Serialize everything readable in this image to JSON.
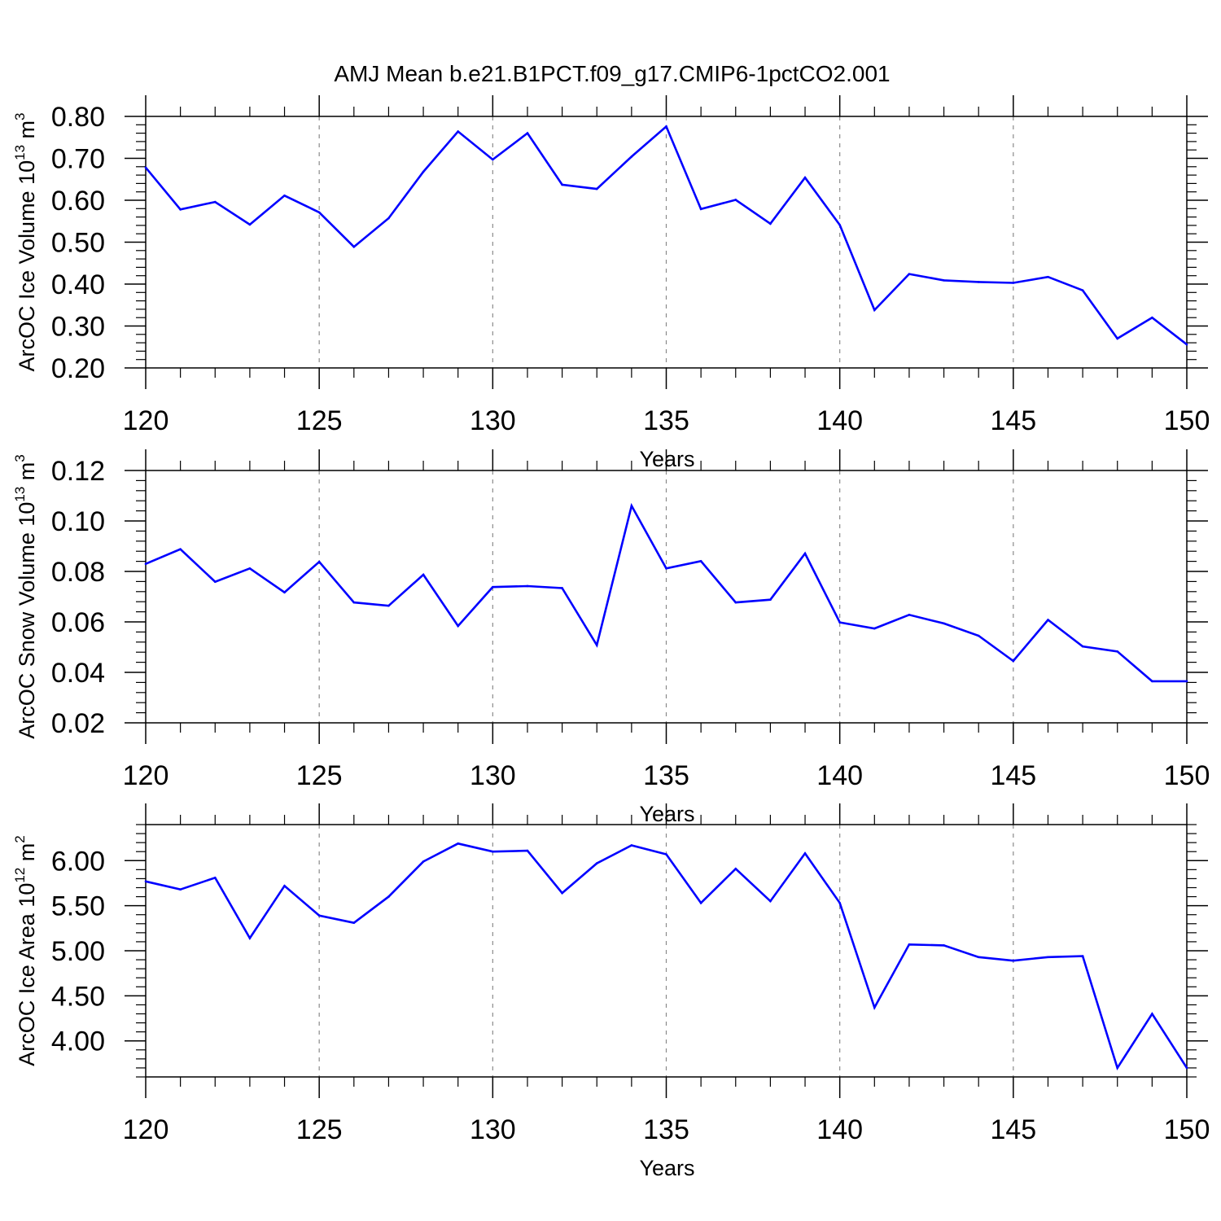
{
  "figure": {
    "title": "AMJ Mean b.e21.B1PCT.f09_g17.CMIP6-1pctCO2.001",
    "line_color": "#0000ff"
  },
  "chart_data": [
    {
      "type": "line",
      "title": "AMJ Mean b.e21.B1PCT.f09_g17.CMIP6-1pctCO2.001",
      "ylabel": "ArcOC Ice Volume 10",
      "ylabel_exp": "13",
      "ylabel_unit": " m",
      "ylabel_unit_exp": "3",
      "xlabel": "Years",
      "xlim": [
        120,
        150
      ],
      "ylim": [
        0.2,
        0.8
      ],
      "yticks": [
        0.2,
        0.3,
        0.4,
        0.5,
        0.6,
        0.7,
        0.8
      ],
      "ytick_labels": [
        "0.20",
        "0.30",
        "0.40",
        "0.50",
        "0.60",
        "0.70",
        "0.80"
      ],
      "xticks": [
        120,
        125,
        130,
        135,
        140,
        145,
        150
      ],
      "xtick_labels": [
        "120",
        "125",
        "130",
        "135",
        "140",
        "145",
        "150"
      ],
      "grid": "vertical-dashed",
      "x": [
        120,
        121,
        122,
        123,
        124,
        125,
        126,
        127,
        128,
        129,
        130,
        131,
        132,
        133,
        134,
        135,
        136,
        137,
        138,
        139,
        140,
        141,
        142,
        143,
        144,
        145,
        146,
        147,
        148,
        149,
        150
      ],
      "values": [
        0.678,
        0.578,
        0.596,
        0.542,
        0.611,
        0.571,
        0.489,
        0.557,
        0.668,
        0.764,
        0.697,
        0.76,
        0.637,
        0.627,
        0.704,
        0.776,
        0.579,
        0.601,
        0.544,
        0.654,
        0.541,
        0.338,
        0.424,
        0.409,
        0.405,
        0.403,
        0.417,
        0.385,
        0.27,
        0.32,
        0.256
      ]
    },
    {
      "type": "line",
      "ylabel": "ArcOC Snow Volume 10",
      "ylabel_exp": "13",
      "ylabel_unit": " m",
      "ylabel_unit_exp": "3",
      "xlabel": "Years",
      "xlim": [
        120,
        150
      ],
      "ylim": [
        0.02,
        0.12
      ],
      "yticks": [
        0.02,
        0.04,
        0.06,
        0.08,
        0.1,
        0.12
      ],
      "ytick_labels": [
        "0.02",
        "0.04",
        "0.06",
        "0.08",
        "0.10",
        "0.12"
      ],
      "xticks": [
        120,
        125,
        130,
        135,
        140,
        145,
        150
      ],
      "xtick_labels": [
        "120",
        "125",
        "130",
        "135",
        "140",
        "145",
        "150"
      ],
      "grid": "vertical-dashed",
      "x": [
        120,
        121,
        122,
        123,
        124,
        125,
        126,
        127,
        128,
        129,
        130,
        131,
        132,
        133,
        134,
        135,
        136,
        137,
        138,
        139,
        140,
        141,
        142,
        143,
        144,
        145,
        146,
        147,
        148,
        149,
        150
      ],
      "values": [
        0.083,
        0.0888,
        0.0759,
        0.0812,
        0.0717,
        0.0838,
        0.0677,
        0.0664,
        0.0787,
        0.0584,
        0.0738,
        0.0742,
        0.0734,
        0.0508,
        0.106,
        0.0812,
        0.0841,
        0.0677,
        0.0688,
        0.0871,
        0.0598,
        0.0574,
        0.0628,
        0.0594,
        0.0545,
        0.0445,
        0.0608,
        0.0503,
        0.0483,
        0.0365,
        0.0365
      ]
    },
    {
      "type": "line",
      "ylabel": "ArcOC Ice Area 10",
      "ylabel_exp": "12",
      "ylabel_unit": " m",
      "ylabel_unit_exp": "2",
      "xlabel": "Years",
      "xlim": [
        120,
        150
      ],
      "ylim": [
        3.6,
        6.4
      ],
      "yticks": [
        4.0,
        4.5,
        5.0,
        5.5,
        6.0
      ],
      "ytick_labels": [
        "4.00",
        "4.50",
        "5.00",
        "5.50",
        "6.00"
      ],
      "xticks": [
        120,
        125,
        130,
        135,
        140,
        145,
        150
      ],
      "xtick_labels": [
        "120",
        "125",
        "130",
        "135",
        "140",
        "145",
        "150"
      ],
      "grid": "vertical-dashed",
      "x": [
        120,
        121,
        122,
        123,
        124,
        125,
        126,
        127,
        128,
        129,
        130,
        131,
        132,
        133,
        134,
        135,
        136,
        137,
        138,
        139,
        140,
        141,
        142,
        143,
        144,
        145,
        146,
        147,
        148,
        149,
        150
      ],
      "values": [
        5.77,
        5.68,
        5.81,
        5.14,
        5.72,
        5.39,
        5.31,
        5.6,
        5.99,
        6.19,
        6.1,
        6.11,
        5.64,
        5.97,
        6.17,
        6.07,
        5.53,
        5.91,
        5.55,
        6.08,
        5.53,
        4.37,
        5.07,
        5.06,
        4.93,
        4.89,
        4.93,
        4.94,
        3.7,
        4.3,
        3.7
      ]
    }
  ]
}
